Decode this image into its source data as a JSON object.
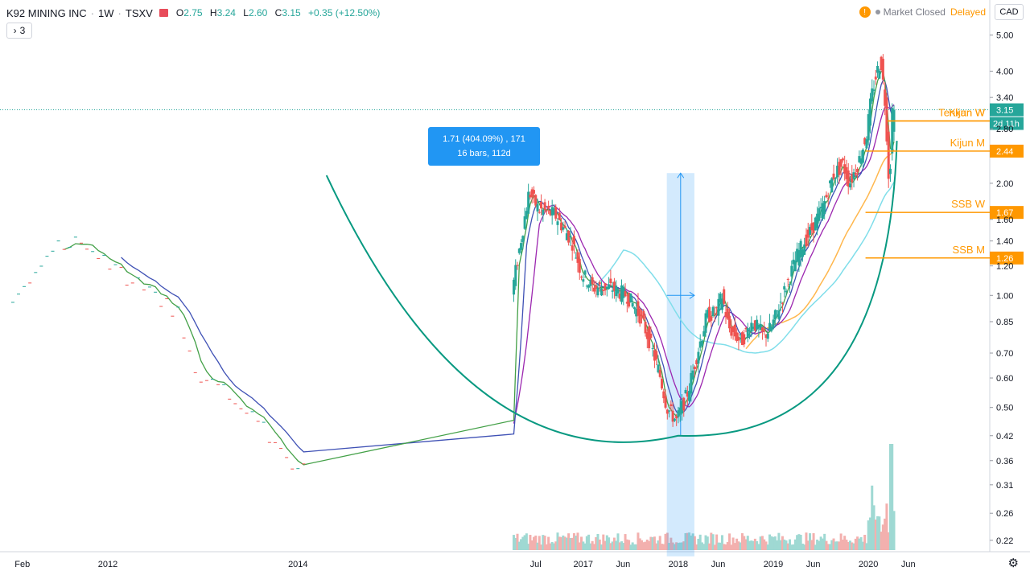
{
  "header": {
    "symbol": "K92 MINING INC",
    "interval": "1W",
    "exchange": "TSXV",
    "open_label": "O",
    "open": "2.75",
    "high_label": "H",
    "high": "3.24",
    "low_label": "L",
    "low": "2.60",
    "close_label": "C",
    "close": "3.15",
    "change": "+0.35 (+12.50%)",
    "indicators_count": "3",
    "market_status": "Market Closed",
    "feed_status": "Delayed",
    "warning_icon": "!",
    "currency": "CAD",
    "settings_icon": "gear-icon"
  },
  "measure_tooltip": {
    "line1": "1.71 (404.09%) , 171",
    "line2": "16 bars, 112d"
  },
  "colors": {
    "up": "#26a69a",
    "down": "#ef5350",
    "accent": "#2196f3",
    "tenkan": "#43a047",
    "kijun": "#3f51b5",
    "ssb_week": "#9c27b0",
    "sma_month": "#80deea",
    "ssb_month": "#ffb74d",
    "level": "#ff9800",
    "cup": "#089981",
    "last": "#26a69a"
  },
  "chart_data": {
    "type": "candlestick",
    "scale": "log",
    "ylim": [
      0.2,
      5.6
    ],
    "price_ticks": [
      "5.00",
      "4.00",
      "3.40",
      "2.80",
      "2.00",
      "1.60",
      "1.40",
      "1.20",
      "1.00",
      "0.85",
      "0.70",
      "0.60",
      "0.50",
      "0.42",
      "0.36",
      "0.31",
      "0.26",
      "0.22"
    ],
    "time_labels": [
      {
        "label": "Feb",
        "x": 2011.1
      },
      {
        "label": "2012",
        "x": 2012.0
      },
      {
        "label": "2014",
        "x": 2014.0
      },
      {
        "label": "Jul",
        "x": 2016.5
      },
      {
        "label": "2017",
        "x": 2017.0
      },
      {
        "label": "Jun",
        "x": 2017.42
      },
      {
        "label": "2018",
        "x": 2018.0
      },
      {
        "label": "Jun",
        "x": 2018.42
      },
      {
        "label": "2019",
        "x": 2019.0
      },
      {
        "label": "Jun",
        "x": 2019.42
      },
      {
        "label": "2020",
        "x": 2020.0
      },
      {
        "label": "Jun",
        "x": 2020.42
      }
    ],
    "candle_anchors": [
      [
        2011.0,
        0.9
      ],
      [
        2011.35,
        1.25
      ],
      [
        2011.55,
        1.34
      ],
      [
        2011.8,
        1.4
      ],
      [
        2012.0,
        1.25
      ],
      [
        2012.3,
        1.1
      ],
      [
        2012.8,
        0.9
      ],
      [
        2013.0,
        0.62
      ],
      [
        2013.3,
        0.55
      ],
      [
        2013.6,
        0.46
      ],
      [
        2013.85,
        0.4
      ],
      [
        2014.05,
        0.34
      ],
      [
        2016.28,
        1.05
      ],
      [
        2016.45,
        1.9
      ],
      [
        2016.55,
        1.7
      ],
      [
        2016.72,
        1.65
      ],
      [
        2016.9,
        1.4
      ],
      [
        2017.0,
        1.15
      ],
      [
        2017.12,
        1.05
      ],
      [
        2017.3,
        1.05
      ],
      [
        2017.48,
        1.0
      ],
      [
        2017.62,
        0.88
      ],
      [
        2017.72,
        0.75
      ],
      [
        2017.82,
        0.62
      ],
      [
        2017.9,
        0.5
      ],
      [
        2018.0,
        0.46
      ],
      [
        2018.12,
        0.55
      ],
      [
        2018.22,
        0.7
      ],
      [
        2018.32,
        0.88
      ],
      [
        2018.42,
        0.9
      ],
      [
        2018.48,
        1.0
      ],
      [
        2018.55,
        0.82
      ],
      [
        2018.68,
        0.75
      ],
      [
        2018.8,
        0.85
      ],
      [
        2018.92,
        0.78
      ],
      [
        2019.0,
        0.82
      ],
      [
        2019.15,
        1.05
      ],
      [
        2019.28,
        1.3
      ],
      [
        2019.42,
        1.5
      ],
      [
        2019.55,
        1.75
      ],
      [
        2019.65,
        2.1
      ],
      [
        2019.75,
        2.25
      ],
      [
        2019.82,
        2.0
      ],
      [
        2019.92,
        2.3
      ],
      [
        2020.0,
        2.7
      ],
      [
        2020.05,
        3.4
      ],
      [
        2020.1,
        3.9
      ],
      [
        2020.15,
        4.3
      ],
      [
        2020.2,
        3.2
      ],
      [
        2020.24,
        1.9
      ],
      [
        2020.27,
        3.15
      ]
    ],
    "last_price": "3.15",
    "countdown": "2d 11h",
    "levels": [
      {
        "name": "Tenkan W",
        "value": 2.94,
        "price_label": ""
      },
      {
        "name": "Kijun W",
        "value": 2.94,
        "price_label": ""
      },
      {
        "name": "Kijun M",
        "value": 2.44,
        "price_label": "2.44"
      },
      {
        "name": "SSB W",
        "value": 1.67,
        "price_label": "1.67"
      },
      {
        "name": "SSB M",
        "value": 1.26,
        "price_label": "1.26"
      }
    ],
    "measure": {
      "from_date": 2017.88,
      "to_date": 2018.17,
      "from_price": 0.42,
      "to_price": 2.13
    },
    "cup_pattern": {
      "start": [
        2014.3,
        2.1
      ],
      "bottom": [
        2018.0,
        0.42
      ],
      "end": [
        2020.3,
        2.6
      ]
    }
  }
}
